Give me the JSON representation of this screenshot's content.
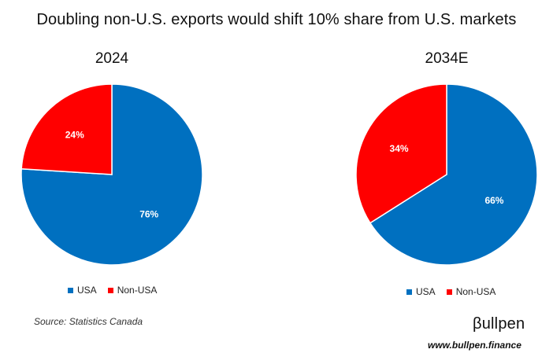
{
  "title": "Doubling non-U.S. exports would shift 10% share from U.S. markets",
  "colors": {
    "usa": "#0070C0",
    "non_usa": "#FF0000"
  },
  "chart_data": [
    {
      "type": "pie",
      "title": "2024",
      "slices": [
        {
          "label": "USA",
          "value": 76,
          "display": "76%"
        },
        {
          "label": "Non-USA",
          "value": 24,
          "display": "24%"
        }
      ],
      "legend": [
        "USA",
        "Non-USA"
      ],
      "legend_position": "bottom"
    },
    {
      "type": "pie",
      "title": "2034E",
      "slices": [
        {
          "label": "USA",
          "value": 66,
          "display": "66%"
        },
        {
          "label": "Non-USA",
          "value": 34,
          "display": "34%"
        }
      ],
      "legend": [
        "USA",
        "Non-USA"
      ],
      "legend_position": "bottom"
    }
  ],
  "source": "Source: Statistics Canada",
  "brand": {
    "name": "βullpen",
    "url": "www.bullpen.finance"
  }
}
